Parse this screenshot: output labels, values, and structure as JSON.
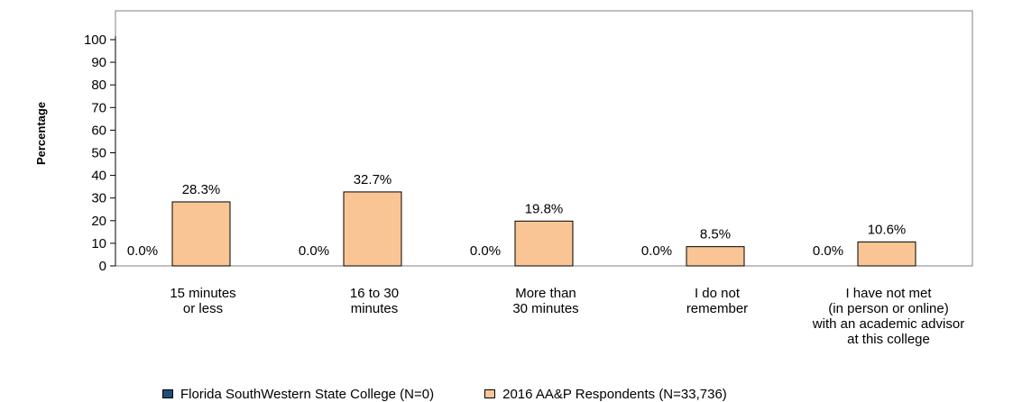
{
  "chart_data": {
    "type": "bar",
    "title": "",
    "xlabel": "",
    "ylabel": "Percentage",
    "ylim": [
      0,
      100
    ],
    "yticks": [
      0,
      10,
      20,
      30,
      40,
      50,
      60,
      70,
      80,
      90,
      100
    ],
    "grid": false,
    "legend_position": "bottom",
    "categories": [
      [
        "15 minutes",
        "or less"
      ],
      [
        "16 to 30",
        "minutes"
      ],
      [
        "More than",
        "30 minutes"
      ],
      [
        "I do not",
        "remember"
      ],
      [
        "I have not met",
        "(in person or online)",
        "with an academic advisor",
        "at this college"
      ]
    ],
    "series": [
      {
        "name": "Florida SouthWestern State College (N=0)",
        "color": "#1f4e79",
        "values": [
          0.0,
          0.0,
          0.0,
          0.0,
          0.0
        ],
        "labels": [
          "0.0%",
          "0.0%",
          "0.0%",
          "0.0%",
          "0.0%"
        ]
      },
      {
        "name": "2016 AA&P Respondents (N=33,736)",
        "color": "#fac595",
        "values": [
          28.3,
          32.7,
          19.8,
          8.5,
          10.6
        ],
        "labels": [
          "28.3%",
          "32.7%",
          "19.8%",
          "8.5%",
          "10.6%"
        ]
      }
    ]
  }
}
